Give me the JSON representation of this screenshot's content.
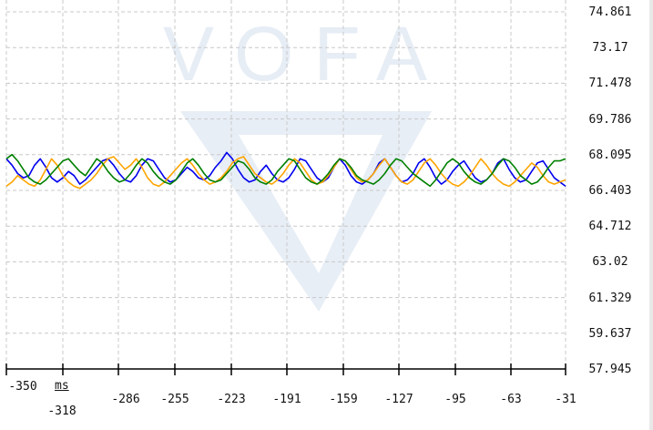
{
  "chart_data": {
    "type": "line",
    "watermark": "VOFA",
    "xlabel": "ms",
    "xlim": [
      -350,
      -31
    ],
    "ylim": [
      57.945,
      74.861
    ],
    "yticks": [
      "74.861",
      "73.17",
      "71.478",
      "69.786",
      "68.095",
      "66.403",
      "64.712",
      "63.02",
      "61.329",
      "59.637",
      "57.945"
    ],
    "xticks_top": [
      "-350",
      "-286",
      "-255",
      "-223",
      "-191",
      "-159",
      "-127",
      "-95",
      "-63",
      "-31"
    ],
    "xticks_bottom": [
      "-318"
    ],
    "grid": true,
    "colors": {
      "blue": "#0000ee",
      "orange": "#ffa500",
      "green": "#008000",
      "grid": "#c8c8c8",
      "axis": "#000000",
      "watermark": "#e6edf5"
    },
    "series": [
      {
        "color": "#0000ee",
        "values": [
          67.9,
          67.6,
          67.2,
          67.0,
          67.1,
          67.6,
          67.9,
          67.5,
          67.0,
          66.8,
          67.0,
          67.3,
          67.1,
          66.7,
          66.9,
          67.2,
          67.5,
          67.8,
          67.9,
          67.6,
          67.2,
          66.9,
          66.8,
          67.1,
          67.6,
          67.9,
          67.8,
          67.4,
          67.0,
          66.8,
          66.9,
          67.2,
          67.5,
          67.3,
          67.0,
          66.9,
          67.1,
          67.5,
          67.8,
          68.2,
          67.9,
          67.4,
          67.0,
          66.8,
          66.9,
          67.3,
          67.6,
          67.2,
          66.9,
          66.8,
          67.0,
          67.4,
          67.9,
          67.8,
          67.4,
          67.0,
          66.8,
          67.0,
          67.5,
          67.9,
          67.6,
          67.1,
          66.8,
          66.7,
          66.9,
          67.2,
          67.7,
          67.9,
          67.5,
          67.1,
          66.8,
          66.9,
          67.2,
          67.7,
          67.9,
          67.5,
          67.0,
          66.7,
          66.9,
          67.3,
          67.6,
          67.8,
          67.4,
          67.0,
          66.8,
          66.9,
          67.2,
          67.7,
          67.9,
          67.4,
          67.0,
          66.8,
          66.9,
          67.3,
          67.7,
          67.8,
          67.4,
          67.0,
          66.8,
          66.6
        ]
      },
      {
        "color": "#ffa500",
        "values": [
          66.6,
          66.8,
          67.1,
          66.9,
          66.7,
          66.6,
          66.9,
          67.4,
          67.9,
          67.6,
          67.1,
          66.8,
          66.6,
          66.5,
          66.7,
          66.9,
          67.2,
          67.6,
          67.9,
          68.0,
          67.7,
          67.4,
          67.6,
          67.9,
          67.5,
          67.0,
          66.7,
          66.6,
          66.8,
          67.1,
          67.4,
          67.7,
          67.9,
          67.6,
          67.2,
          66.9,
          66.7,
          66.8,
          67.0,
          67.3,
          67.7,
          67.9,
          68.0,
          67.6,
          67.2,
          67.0,
          66.8,
          66.7,
          66.9,
          67.2,
          67.6,
          67.9,
          67.7,
          67.3,
          66.9,
          66.7,
          66.8,
          67.1,
          67.5,
          67.9,
          67.8,
          67.4,
          67.0,
          66.8,
          66.9,
          67.2,
          67.6,
          67.9,
          67.5,
          67.1,
          66.8,
          66.7,
          66.9,
          67.3,
          67.7,
          67.9,
          67.6,
          67.2,
          66.9,
          66.7,
          66.6,
          66.8,
          67.1,
          67.5,
          67.9,
          67.6,
          67.2,
          66.9,
          66.7,
          66.6,
          66.8,
          67.1,
          67.4,
          67.7,
          67.5,
          67.1,
          66.8,
          66.7,
          66.8,
          66.9
        ]
      },
      {
        "color": "#008000",
        "values": [
          67.9,
          68.1,
          67.8,
          67.4,
          67.0,
          66.8,
          66.7,
          66.9,
          67.2,
          67.5,
          67.8,
          67.9,
          67.6,
          67.3,
          67.1,
          67.5,
          67.9,
          67.7,
          67.3,
          67.0,
          66.8,
          66.9,
          67.2,
          67.6,
          67.9,
          67.7,
          67.3,
          67.0,
          66.8,
          66.7,
          66.9,
          67.3,
          67.7,
          67.9,
          67.6,
          67.2,
          66.9,
          66.8,
          66.9,
          67.2,
          67.5,
          67.8,
          67.7,
          67.4,
          67.0,
          66.8,
          66.7,
          66.9,
          67.3,
          67.6,
          67.9,
          67.8,
          67.4,
          67.0,
          66.8,
          66.7,
          66.9,
          67.2,
          67.6,
          67.9,
          67.8,
          67.5,
          67.1,
          66.9,
          66.8,
          66.7,
          66.9,
          67.2,
          67.6,
          67.9,
          67.8,
          67.5,
          67.2,
          67.0,
          66.8,
          66.6,
          66.9,
          67.3,
          67.7,
          67.9,
          67.7,
          67.3,
          67.0,
          66.8,
          66.7,
          66.9,
          67.2,
          67.6,
          67.9,
          67.8,
          67.5,
          67.1,
          66.9,
          66.7,
          66.8,
          67.1,
          67.5,
          67.8,
          67.8,
          67.9
        ]
      }
    ]
  }
}
